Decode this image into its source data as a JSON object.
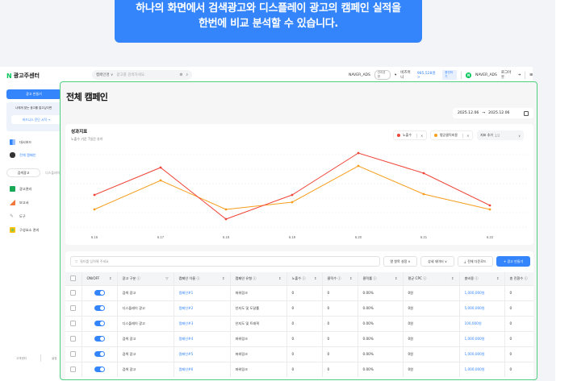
{
  "banner": {
    "line1": "하나의 화면에서 검색광고와 디스플레이 광고의 캠페인 실적을",
    "line2": "한번에 비교 분석할 수 있습니다."
  },
  "topbar": {
    "logo_text": "광고주센터",
    "search_scope": "캠페인명 ∨",
    "search_placeholder": "광고를 검색하세요.",
    "account": "NAVER_ADS",
    "account_badge": "관리권한",
    "bizmoney_label": "비즈머니",
    "bizmoney_value": "985,528원 >",
    "charge_button": "충전하기",
    "user_name": "NAVER_ADS",
    "logout": "로그아웃"
  },
  "sidebar": {
    "create_ad": "광고 만들기",
    "promo_text": "나에게 맞는 광고를 알고싶다면",
    "promo_button": "비즈니스 진단 시작 →",
    "items": [
      {
        "label": "대시보드",
        "color": "#3485fb"
      },
      {
        "label": "전체 캠페인",
        "color": "#333333"
      }
    ],
    "tabs": [
      "검색광고",
      "디스플레이"
    ],
    "menu": [
      {
        "label": "광고관리",
        "color": "#18a957"
      },
      {
        "label": "보고서",
        "color": "#f0783c"
      },
      {
        "label": "도구",
        "color": "#999999"
      },
      {
        "label": "구성요소 관리",
        "color": "#8bc34a"
      }
    ],
    "footer": [
      "고객센터",
      "설정"
    ]
  },
  "main": {
    "title": "전체 캠페인",
    "date_start": "2025.12.06",
    "date_arrow": "→",
    "date_end": "2025.12.06"
  },
  "chart_card": {
    "title": "성과지표",
    "subtitle": "노출수 기준 7일간 추이",
    "legend": [
      {
        "label": "노출수",
        "color": "#f04438"
      },
      {
        "label": "평균클릭비용",
        "color": "#f79d1a"
      }
    ],
    "metric_select": "지표 추가",
    "metric_count": "2/2"
  },
  "chart_data": {
    "type": "line",
    "title": "성과지표",
    "subtitle": "노출수 기준 7일간 추이",
    "categories": [
      "6.16",
      "6.17",
      "6.18",
      "6.19",
      "6.20",
      "6.21",
      "6.22"
    ],
    "series": [
      {
        "name": "노출수",
        "color": "#f04438",
        "values": [
          50,
          78,
          17,
          50,
          94,
          72,
          36
        ]
      },
      {
        "name": "평균클릭비용",
        "color": "#f79d1a",
        "values": [
          34,
          65,
          34,
          41,
          81,
          50,
          34
        ]
      }
    ],
    "ylim": [
      0,
      100
    ],
    "grid": true,
    "legend_position": "top-right"
  },
  "table": {
    "filter_placeholder": "필터를 입력해 주세요",
    "buttons": [
      "열 항목 설정 ∨",
      "상세 데이터 ∨",
      "전체 다운로드",
      "+ 광고 만들기"
    ],
    "columns": [
      "ON/OFF",
      "광고 구분 ⓘ",
      "캠페인 이름 ⓘ",
      "캠페인 유형 ⓘ",
      "노출수 ⓘ",
      "클릭수 ⓘ",
      "클릭률 ⓘ",
      "평균 CPC ⓘ",
      "총비용 ⓘ",
      "총 전환수 ⓘ"
    ],
    "rows": [
      {
        "type": "검색 광고",
        "name": "캠페인#1",
        "kind": "파워링크",
        "imp": "0",
        "clicks": "0",
        "ctr": "0.00%",
        "cpc": "0원",
        "cost": "1,000,000원",
        "conv": "0"
      },
      {
        "type": "디스플레이 광고",
        "name": "캠페인#2",
        "kind": "인지도 및 도달률",
        "imp": "0",
        "clicks": "0",
        "ctr": "0.00%",
        "cpc": "0원",
        "cost": "5,000,000원",
        "conv": "0"
      },
      {
        "type": "디스플레이 광고",
        "name": "캠페인#3",
        "kind": "인지도 및 트래픽",
        "imp": "0",
        "clicks": "0",
        "ctr": "0.00%",
        "cpc": "0원",
        "cost": "100,000원",
        "conv": "0"
      },
      {
        "type": "검색 광고",
        "name": "캠페인#4",
        "kind": "파워링크",
        "imp": "0",
        "clicks": "0",
        "ctr": "0.00%",
        "cpc": "0원",
        "cost": "1,000,000원",
        "conv": "0"
      },
      {
        "type": "검색 광고",
        "name": "캠페인#5",
        "kind": "파워링크",
        "imp": "0",
        "clicks": "0",
        "ctr": "0.00%",
        "cpc": "0원",
        "cost": "1,000,000원",
        "conv": "0"
      },
      {
        "type": "검색 광고",
        "name": "캠페인#6",
        "kind": "파워링크",
        "imp": "0",
        "clicks": "0",
        "ctr": "0.00%",
        "cpc": "0원",
        "cost": "1,000,000원",
        "conv": "0"
      }
    ]
  },
  "colors": {
    "accent": "#3485fb",
    "highlight_border": "#4fcf82",
    "naver_green": "#03c75a"
  }
}
